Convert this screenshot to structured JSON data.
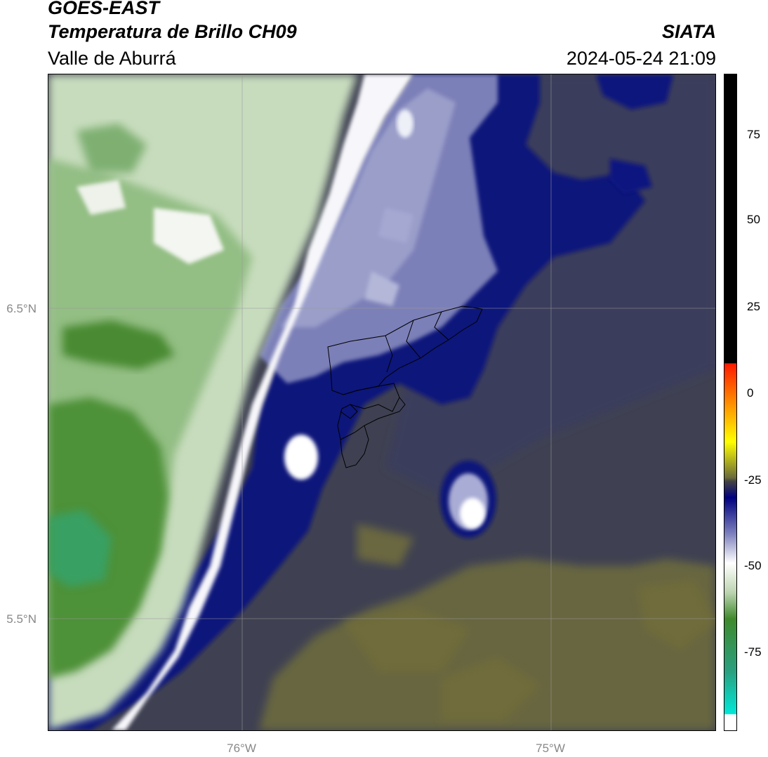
{
  "header": {
    "title": "GOES-EAST",
    "subtitle": "Temperatura de Brillo CH09",
    "region": "Valle de Aburrá",
    "organization": "SIATA",
    "datetime": "2024-05-24 21:09"
  },
  "map": {
    "lat_labels": [
      "6.5°N",
      "5.5°N"
    ],
    "lon_labels": [
      "76°W",
      "75°W"
    ],
    "grid": true,
    "colors": {
      "green_deep": "#3f8a2c",
      "green_light": "#c9dcbf",
      "white": "#ffffff",
      "navy": "#0b0f7a",
      "slate": "#3f4152",
      "olive": "#6d6a3a"
    }
  },
  "colorbar": {
    "ticks": [
      "75",
      "50",
      "25",
      "0",
      "-25",
      "-50",
      "-75"
    ],
    "colors": [
      "#000000",
      "#ff1a00",
      "#ff8c00",
      "#ffff00",
      "#444444",
      "#000080",
      "#ffffff",
      "#3f8a2c",
      "#00e8d8"
    ]
  }
}
